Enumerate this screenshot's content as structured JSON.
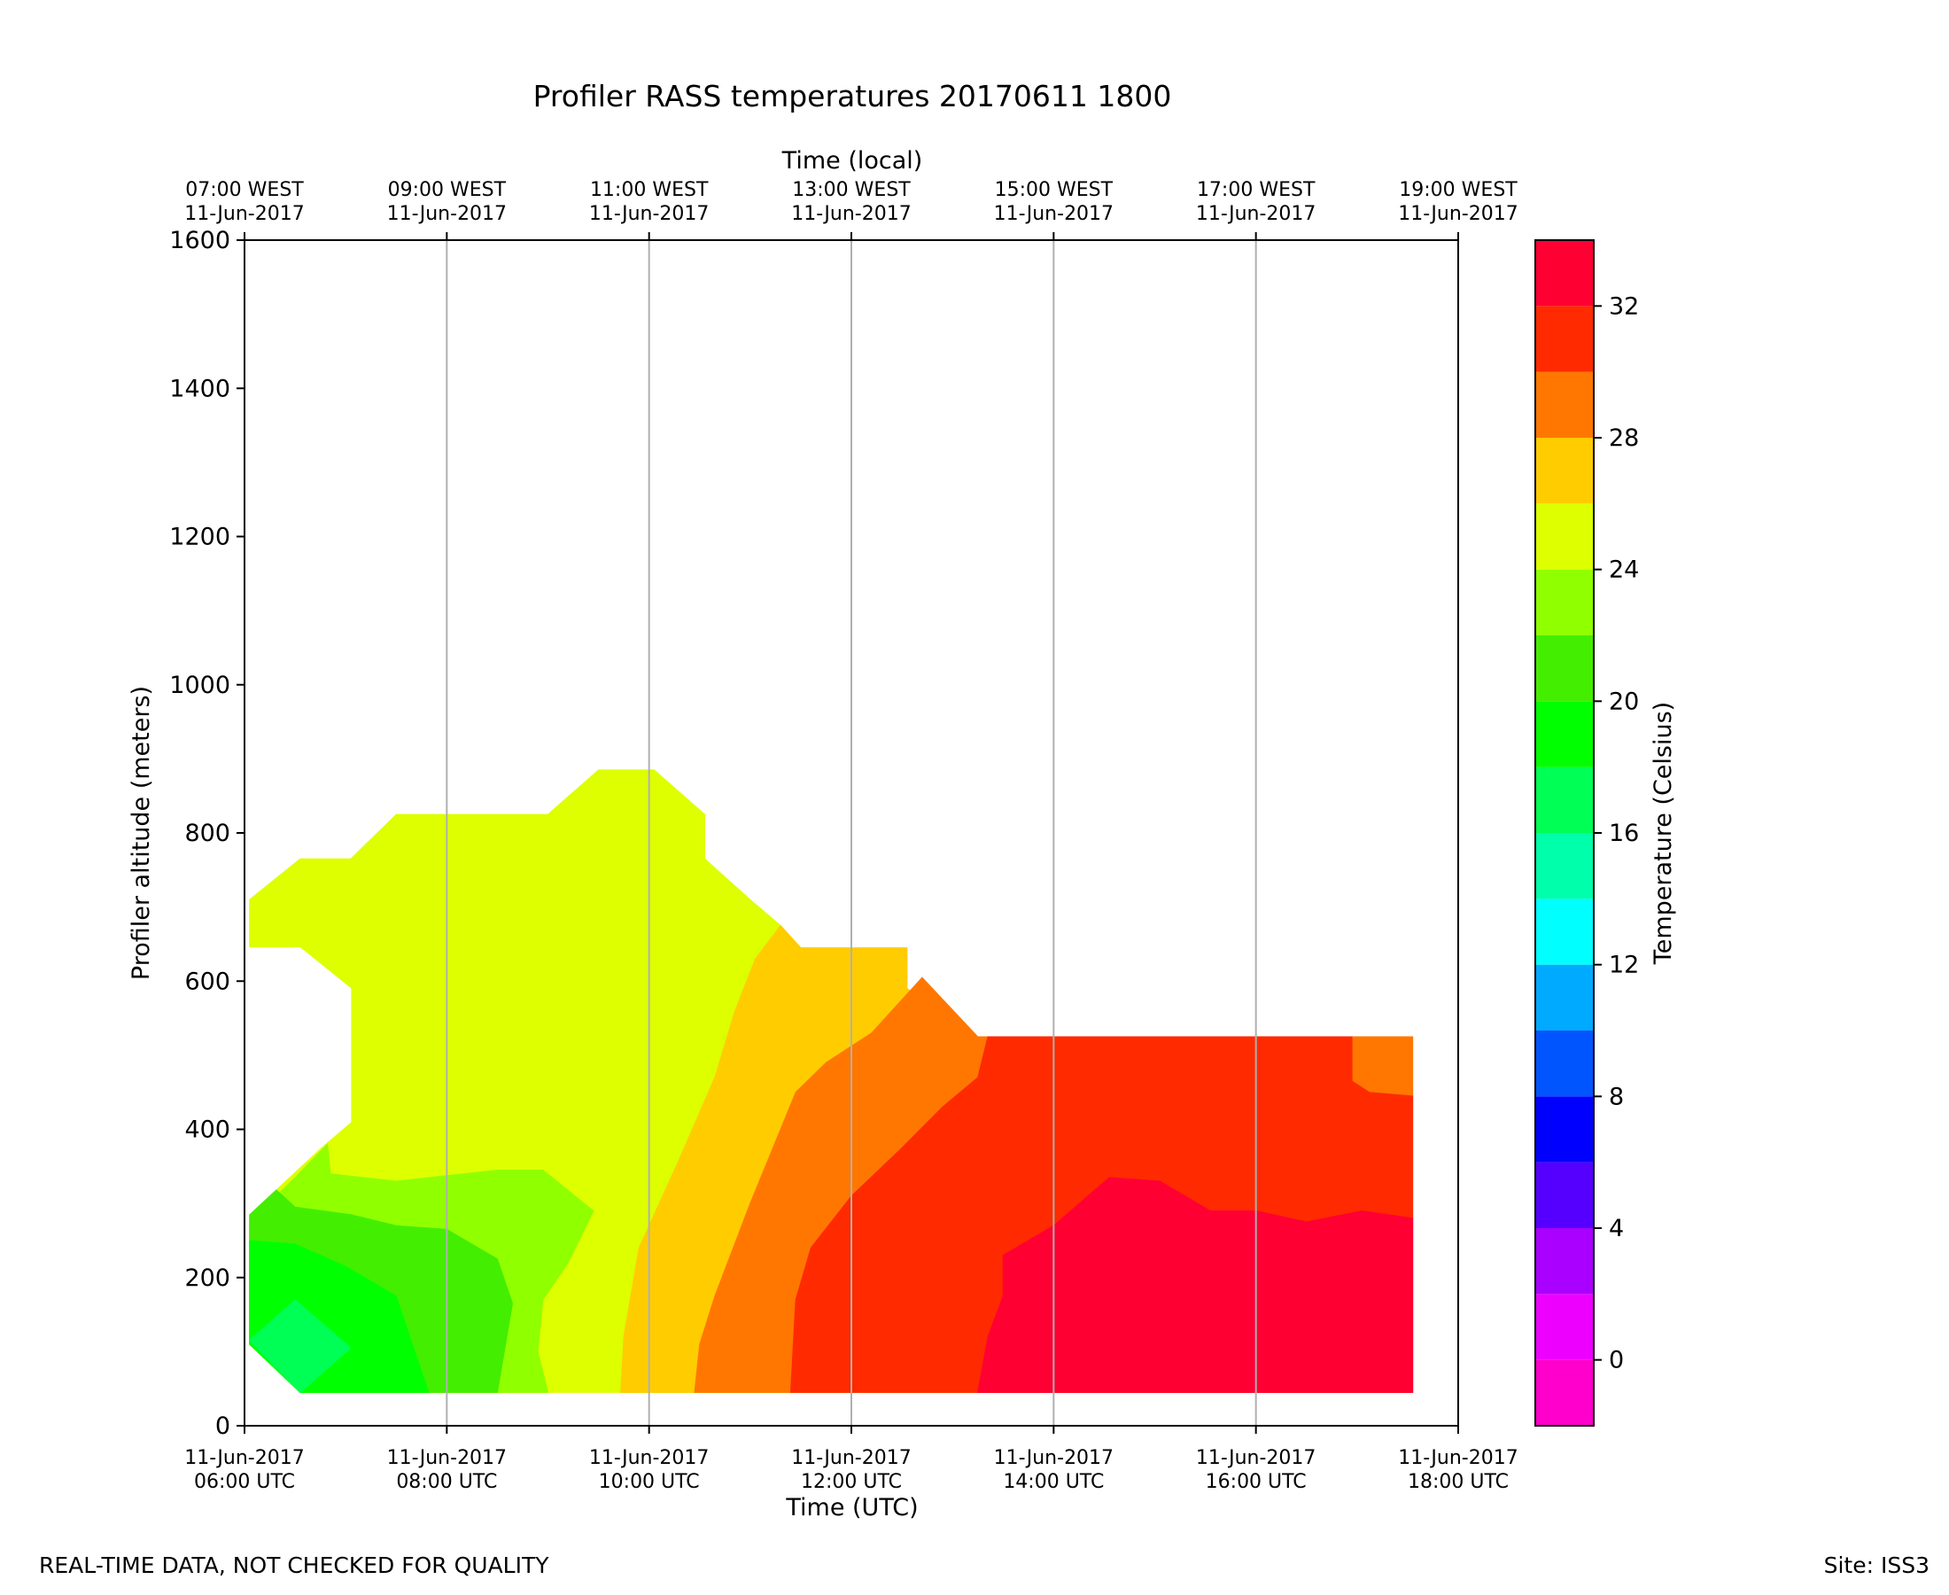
{
  "chart_data": {
    "type": "heatmap",
    "title": "Profiler RASS temperatures 20170611 1800",
    "xlabel": "Time (UTC)",
    "top_xlabel": "Time (local)",
    "ylabel": "Profiler altitude (meters)",
    "colorbar_label": "Temperature (Celsius)",
    "ylim": [
      0,
      1600
    ],
    "xlim_hours_utc": [
      6,
      18
    ],
    "yticks": [
      "0",
      "200",
      "400",
      "600",
      "800",
      "1000",
      "1200",
      "1400",
      "1600"
    ],
    "bottom_ticks": [
      {
        "hour": 6,
        "line1": "11-Jun-2017",
        "line2": "06:00 UTC"
      },
      {
        "hour": 8,
        "line1": "11-Jun-2017",
        "line2": "08:00 UTC"
      },
      {
        "hour": 10,
        "line1": "11-Jun-2017",
        "line2": "10:00 UTC"
      },
      {
        "hour": 12,
        "line1": "11-Jun-2017",
        "line2": "12:00 UTC"
      },
      {
        "hour": 14,
        "line1": "11-Jun-2017",
        "line2": "14:00 UTC"
      },
      {
        "hour": 16,
        "line1": "11-Jun-2017",
        "line2": "16:00 UTC"
      },
      {
        "hour": 18,
        "line1": "11-Jun-2017",
        "line2": "18:00 UTC"
      }
    ],
    "top_ticks": [
      {
        "hour": 6,
        "line1": "07:00 WEST",
        "line2": "11-Jun-2017"
      },
      {
        "hour": 8,
        "line1": "09:00 WEST",
        "line2": "11-Jun-2017"
      },
      {
        "hour": 10,
        "line1": "11:00 WEST",
        "line2": "11-Jun-2017"
      },
      {
        "hour": 12,
        "line1": "13:00 WEST",
        "line2": "11-Jun-2017"
      },
      {
        "hour": 14,
        "line1": "15:00 WEST",
        "line2": "11-Jun-2017"
      },
      {
        "hour": 16,
        "line1": "17:00 WEST",
        "line2": "11-Jun-2017"
      },
      {
        "hour": 18,
        "line1": "19:00 WEST",
        "line2": "11-Jun-2017"
      }
    ],
    "vertical_grid_hours": [
      8,
      10,
      12,
      14,
      16
    ],
    "colorbar": {
      "vmin": -2,
      "vmax": 34,
      "levels": [
        {
          "from": -2,
          "to": 0,
          "color": "#ff00cc"
        },
        {
          "from": 0,
          "to": 2,
          "color": "#ee00ff"
        },
        {
          "from": 2,
          "to": 4,
          "color": "#aa00ff"
        },
        {
          "from": 4,
          "to": 6,
          "color": "#5500ff"
        },
        {
          "from": 6,
          "to": 8,
          "color": "#0000ff"
        },
        {
          "from": 8,
          "to": 10,
          "color": "#0055ff"
        },
        {
          "from": 10,
          "to": 12,
          "color": "#00aaff"
        },
        {
          "from": 12,
          "to": 14,
          "color": "#00ffff"
        },
        {
          "from": 14,
          "to": 16,
          "color": "#00ffaa"
        },
        {
          "from": 16,
          "to": 18,
          "color": "#00ff55"
        },
        {
          "from": 18,
          "to": 20,
          "color": "#00ff00"
        },
        {
          "from": 20,
          "to": 22,
          "color": "#44ee00"
        },
        {
          "from": 22,
          "to": 24,
          "color": "#90ff00"
        },
        {
          "from": 24,
          "to": 26,
          "color": "#ddff00"
        },
        {
          "from": 26,
          "to": 28,
          "color": "#ffcc00"
        },
        {
          "from": 28,
          "to": 30,
          "color": "#ff7700"
        },
        {
          "from": 30,
          "to": 32,
          "color": "#ff2a00"
        },
        {
          "from": 32,
          "to": 34,
          "color": "#ff0033"
        }
      ],
      "ticks": [
        "0",
        "4",
        "8",
        "12",
        "16",
        "20",
        "24",
        "28",
        "32"
      ]
    },
    "regions": [
      {
        "temperature": "24-26",
        "color": "#ddff00",
        "points": [
          [
            6.05,
            710
          ],
          [
            6.55,
            765
          ],
          [
            7.05,
            765
          ],
          [
            7.5,
            825
          ],
          [
            8.5,
            825
          ],
          [
            9.0,
            825
          ],
          [
            9.5,
            885
          ],
          [
            10.05,
            885
          ],
          [
            10.55,
            825
          ],
          [
            10.55,
            765
          ],
          [
            11.0,
            710
          ],
          [
            11.3,
            675
          ],
          [
            11.5,
            645
          ],
          [
            12.0,
            645
          ],
          [
            12.55,
            645
          ],
          [
            12.55,
            590
          ],
          [
            13.25,
            525
          ],
          [
            14.0,
            525
          ],
          [
            16.0,
            525
          ],
          [
            17.55,
            525
          ],
          [
            17.55,
            45
          ],
          [
            6.55,
            45
          ],
          [
            6.05,
            110
          ]
        ]
      },
      {
        "temperature": "26-28",
        "color": "#ffcc00",
        "points": [
          [
            9.72,
            45
          ],
          [
            9.75,
            120
          ],
          [
            9.9,
            240
          ],
          [
            10.3,
            360
          ],
          [
            10.65,
            470
          ],
          [
            10.85,
            560
          ],
          [
            11.05,
            630
          ],
          [
            11.3,
            675
          ],
          [
            11.5,
            645
          ],
          [
            12.0,
            645
          ],
          [
            12.55,
            645
          ],
          [
            12.55,
            590
          ],
          [
            13.25,
            525
          ],
          [
            17.55,
            525
          ],
          [
            17.55,
            45
          ]
        ]
      },
      {
        "temperature": "28-30",
        "color": "#ff7700",
        "points": [
          [
            10.45,
            45
          ],
          [
            10.5,
            110
          ],
          [
            10.65,
            175
          ],
          [
            11.0,
            300
          ],
          [
            11.45,
            450
          ],
          [
            11.75,
            490
          ],
          [
            12.2,
            530
          ],
          [
            12.7,
            605
          ],
          [
            13.25,
            525
          ],
          [
            17.55,
            525
          ],
          [
            17.55,
            45
          ]
        ]
      },
      {
        "temperature": "30-32",
        "color": "#ff2a00",
        "points": [
          [
            11.4,
            45
          ],
          [
            11.45,
            170
          ],
          [
            11.6,
            240
          ],
          [
            12.0,
            310
          ],
          [
            12.5,
            375
          ],
          [
            12.9,
            430
          ],
          [
            13.25,
            470
          ],
          [
            13.35,
            525
          ],
          [
            16.95,
            525
          ],
          [
            16.95,
            465
          ],
          [
            17.12,
            450
          ],
          [
            17.55,
            445
          ],
          [
            17.55,
            45
          ]
        ]
      },
      {
        "temperature": "32-34",
        "color": "#ff0033",
        "points": [
          [
            13.25,
            45
          ],
          [
            13.35,
            120
          ],
          [
            13.5,
            175
          ],
          [
            13.5,
            230
          ],
          [
            14.0,
            270
          ],
          [
            14.55,
            335
          ],
          [
            15.05,
            330
          ],
          [
            15.55,
            290
          ],
          [
            16.0,
            290
          ],
          [
            16.5,
            275
          ],
          [
            17.05,
            290
          ],
          [
            17.55,
            280
          ],
          [
            17.55,
            45
          ]
        ]
      },
      {
        "temperature": "22-24",
        "color": "#90ff00",
        "points": [
          [
            6.05,
            275
          ],
          [
            6.5,
            335
          ],
          [
            6.82,
            380
          ],
          [
            6.85,
            340
          ],
          [
            7.5,
            330
          ],
          [
            8.5,
            345
          ],
          [
            8.95,
            345
          ],
          [
            9.45,
            290
          ],
          [
            9.2,
            220
          ],
          [
            8.95,
            170
          ],
          [
            8.9,
            100
          ],
          [
            9.0,
            45
          ],
          [
            6.55,
            45
          ],
          [
            6.05,
            110
          ]
        ]
      },
      {
        "temperature": "20-22",
        "color": "#44ee00",
        "points": [
          [
            6.05,
            290
          ],
          [
            6.3,
            320
          ],
          [
            6.5,
            295
          ],
          [
            7.05,
            285
          ],
          [
            7.5,
            270
          ],
          [
            8.0,
            265
          ],
          [
            8.5,
            225
          ],
          [
            8.65,
            165
          ],
          [
            8.5,
            45
          ],
          [
            6.55,
            45
          ],
          [
            6.05,
            110
          ]
        ]
      },
      {
        "temperature": "18-20",
        "color": "#00ff00",
        "points": [
          [
            6.05,
            250
          ],
          [
            6.5,
            245
          ],
          [
            7.0,
            215
          ],
          [
            7.5,
            175
          ],
          [
            7.82,
            45
          ],
          [
            6.55,
            45
          ],
          [
            6.05,
            110
          ]
        ]
      },
      {
        "temperature": "16-18",
        "color": "#00ff55",
        "points": [
          [
            6.05,
            115
          ],
          [
            6.5,
            170
          ],
          [
            7.05,
            105
          ],
          [
            6.55,
            45
          ]
        ]
      },
      {
        "temperature": "missing",
        "color": "#ffffff",
        "points": [
          [
            6.0,
            645
          ],
          [
            6.55,
            645
          ],
          [
            7.05,
            590
          ],
          [
            7.05,
            410
          ],
          [
            6.75,
            375
          ],
          [
            6.0,
            280
          ]
        ]
      }
    ]
  },
  "footer": {
    "left": "REAL-TIME DATA, NOT CHECKED FOR QUALITY",
    "right": "Site: ISS3"
  }
}
